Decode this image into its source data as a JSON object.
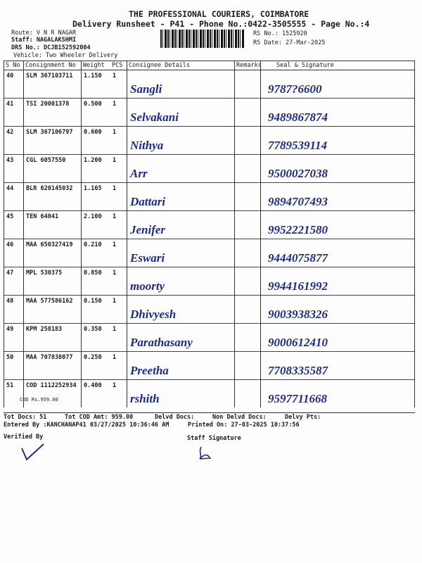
{
  "header": {
    "company": "THE PROFESSIONAL COURIERS, COIMBATORE",
    "title": "Delivery Runsheet - P41 - Phone No.:0422-3505555 - Page No.:4",
    "route": "Route: V N R NAGAR",
    "staff": "Staff: NAGALAKSHMI",
    "drs": "DRS No.: DCJB152592004",
    "vehicle": "Vehicle: Two Wheeler Delivery",
    "rs_no": "RS No.: 1525920",
    "rs_date": "RS Date: 27-Mar-2025"
  },
  "columns": [
    "S No",
    "Consignment No",
    "Weight",
    "PCS",
    "Consignee Details",
    "Remarks",
    "Seal & Signature"
  ],
  "rows": [
    {
      "sno": "40",
      "cno": "SLM 367103711",
      "weight": "1.150",
      "pcs": "1",
      "name": "Sangli",
      "phone": "9787?6600"
    },
    {
      "sno": "41",
      "cno": "TSI 20001378",
      "weight": "0.500",
      "pcs": "1",
      "name": "Selvakani",
      "phone": "9489867874"
    },
    {
      "sno": "42",
      "cno": "SLM 367106797",
      "weight": "0.600",
      "pcs": "1",
      "name": "Nithya",
      "phone": "7789539114"
    },
    {
      "sno": "43",
      "cno": "CGL 6057550",
      "weight": "1.200",
      "pcs": "1",
      "name": "Arr",
      "phone": "9500027038"
    },
    {
      "sno": "44",
      "cno": "BLR 620145032",
      "weight": "1.165",
      "pcs": "1",
      "name": "Dattari",
      "phone": "9894707493"
    },
    {
      "sno": "45",
      "cno": "TEN 64041",
      "weight": "2.100",
      "pcs": "1",
      "name": "Jenifer",
      "phone": "9952221580"
    },
    {
      "sno": "46",
      "cno": "MAA 650327419",
      "weight": "0.210",
      "pcs": "1",
      "name": "Eswari",
      "phone": "9444075877"
    },
    {
      "sno": "47",
      "cno": "MPL 530375",
      "weight": "0.850",
      "pcs": "1",
      "name": "moorty",
      "phone": "9944161992"
    },
    {
      "sno": "48",
      "cno": "MAA 577586162",
      "weight": "0.150",
      "pcs": "1",
      "name": "Dhivyesh",
      "phone": "9003938326"
    },
    {
      "sno": "49",
      "cno": "KPM 258183",
      "weight": "0.350",
      "pcs": "1",
      "name": "Parathasany",
      "phone": "9000612410"
    },
    {
      "sno": "50",
      "cno": "MAA 707838077",
      "weight": "0.250",
      "pcs": "1",
      "name": "Preetha",
      "phone": "7708335587"
    },
    {
      "sno": "51",
      "cno": "COD 1112252934",
      "weight": "0.400",
      "pcs": "1",
      "name": "rshith",
      "phone": "9597711668",
      "cod": "COD Rs.959.00"
    }
  ],
  "footer": {
    "tot_docs": "Tot Docs:  51",
    "tot_cod": "Tot COD Amt:  959.00",
    "delvd": "Delvd Docs:",
    "non_delvd": "Non Delvd Docs:",
    "delvy_pts": "Delvy Pts:",
    "entered": "Entered By :KANCHANAP41 03/27/2025 10:36:46 AM",
    "printed": "Printed On: 27-03-2025 10:37:56",
    "verified": "Verified By",
    "staff_sig": "Staff Signature"
  }
}
